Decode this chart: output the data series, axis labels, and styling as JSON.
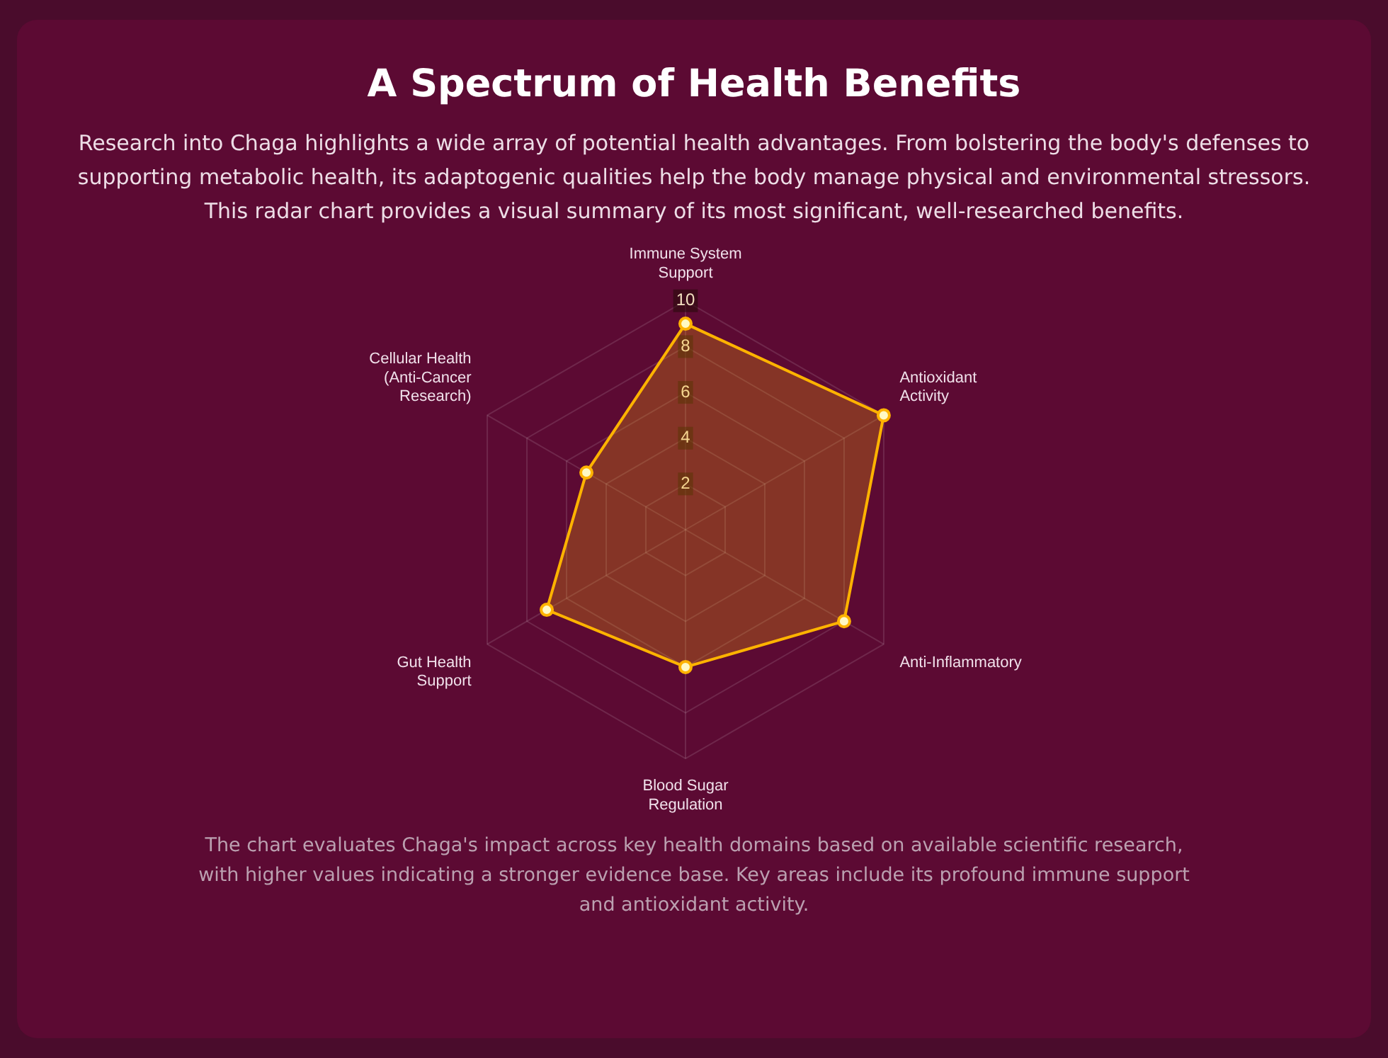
{
  "chart_data": {
    "type": "radar",
    "title": "A Spectrum of Health Benefits",
    "subtitle": "Research into Chaga highlights a wide array of potential health advantages. From bolstering the body's defenses to supporting metabolic health, its adaptogenic qualities help the body manage physical and environmental stressors. This radar chart provides a visual summary of its most significant, well-researched benefits.",
    "categories": [
      "Immune System Support",
      "Antioxidant Activity",
      "Anti-Inflammatory",
      "Blood Sugar Regulation",
      "Gut Health Support",
      "Cellular Health (Anti-Cancer Research)"
    ],
    "series": [
      {
        "color": "#ffb300",
        "values": [
          9,
          10,
          8,
          6,
          7,
          5
        ]
      }
    ],
    "ylim": [
      0,
      10
    ],
    "yticks": [
      2,
      4,
      6,
      8,
      10
    ],
    "grid": true,
    "legend": false,
    "marker": "circle",
    "annotations": [
      "The chart evaluates Chaga's impact across key health domains based on available scientific research, with higher values indicating a stronger evidence base. Key areas include its profound immune support and antioxidant activity."
    ]
  }
}
